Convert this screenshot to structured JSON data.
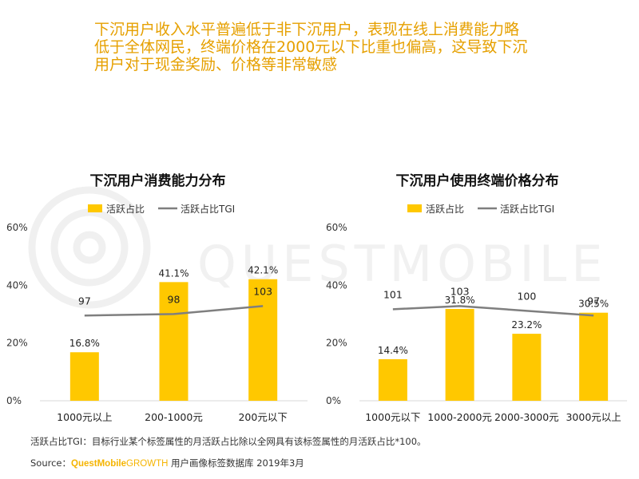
{
  "headline": {
    "line1": "下沉用户收入水平普遍低于非下沉用户，表现在线上消费能力略",
    "line2": "低于全体网民，终端价格在2000元以下比重也偏高，这导致下沉",
    "line3": "用户对于现金奖励、价格等非常敏感"
  },
  "watermark": {
    "text": "QUESTMOBILE"
  },
  "colors": {
    "bar": "#FFC800",
    "line": "#7F7F7F",
    "headline": "#E6A000",
    "brand": "#F5B400"
  },
  "chart_data": [
    {
      "type": "bar",
      "title": "下沉用户消费能力分布",
      "categories": [
        "1000元以上",
        "200-1000元",
        "200元以下"
      ],
      "series": [
        {
          "name": "活跃占比",
          "kind": "bar",
          "values": [
            16.8,
            41.1,
            42.1
          ],
          "labels": [
            "16.8%",
            "41.1%",
            "42.1%"
          ]
        },
        {
          "name": "活跃占比TGI",
          "kind": "line",
          "values": [
            97,
            98,
            103
          ]
        }
      ],
      "yticks": [
        "0%",
        "20%",
        "40%",
        "60%"
      ],
      "ylim": [
        0,
        60
      ],
      "legend": "top-center"
    },
    {
      "type": "bar",
      "title": "下沉用户使用终端价格分布",
      "categories": [
        "1000元以下",
        "1000-2000元",
        "2000-3000元",
        "3000元以上"
      ],
      "series": [
        {
          "name": "活跃占比",
          "kind": "bar",
          "values": [
            14.4,
            31.8,
            23.2,
            30.5
          ],
          "labels": [
            "14.4%",
            "31.8%",
            "23.2%",
            "30.5%"
          ]
        },
        {
          "name": "活跃占比TGI",
          "kind": "line",
          "values": [
            101,
            103,
            100,
            97
          ]
        }
      ],
      "yticks": [
        "0%",
        "20%",
        "40%",
        "60%"
      ],
      "ylim": [
        0,
        60
      ],
      "legend": "top-center"
    }
  ],
  "footnote": "活跃占比TGI：目标行业某个标签属性的月活跃占比除以全网具有该标签属性的月活跃占比*100。",
  "source": {
    "label": "Source：",
    "brand_a": "QuestMobile",
    "brand_b": "GROWTH",
    "rest": " 用户画像标签数据库 2019年3月"
  }
}
